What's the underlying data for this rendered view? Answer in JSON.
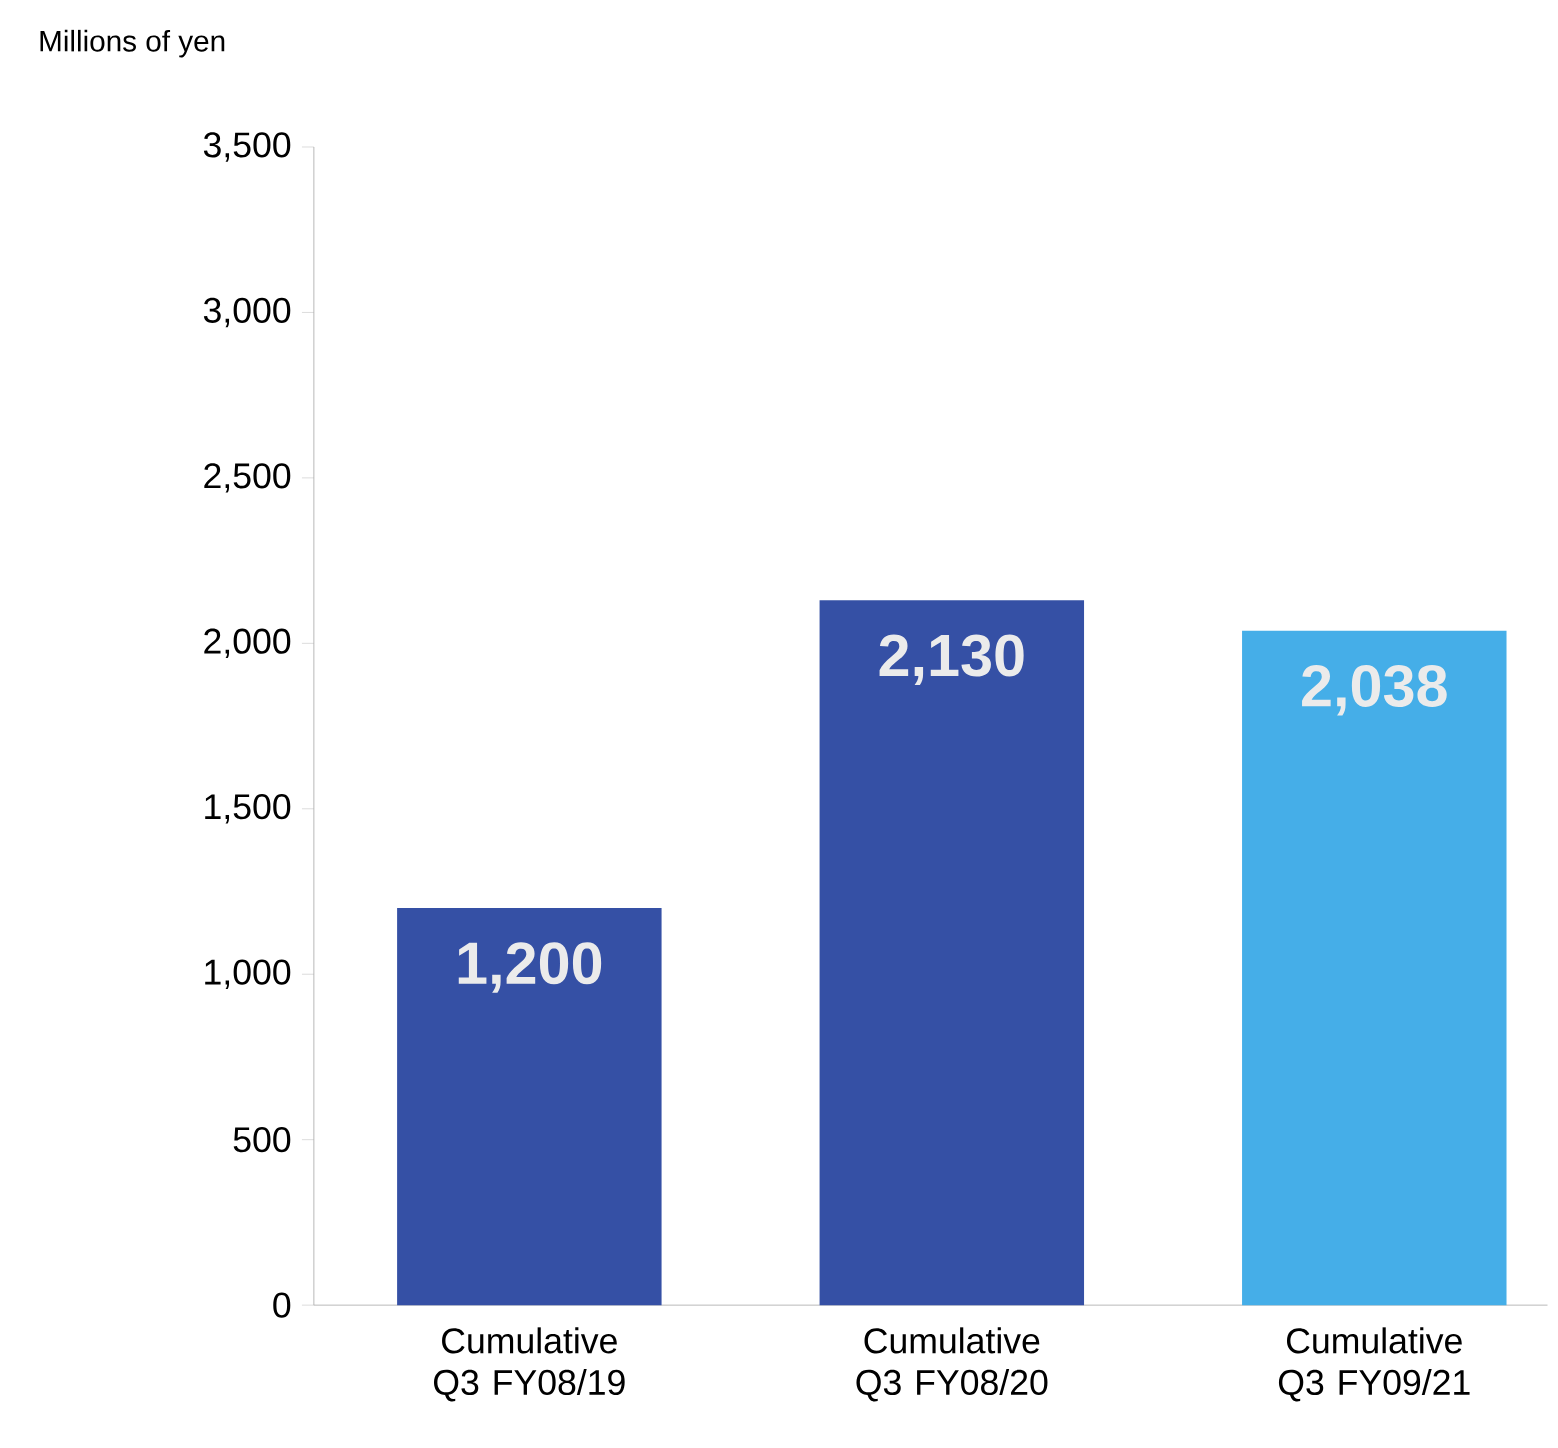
{
  "chart_data": {
    "type": "bar",
    "ylabel": "Millions of yen",
    "categories": [
      "Cumulative Q3 FY08/19",
      "Cumulative Q3 FY08/20",
      "Cumulative Q3 FY09/21"
    ],
    "values": [
      1200,
      2130,
      2038
    ],
    "colors": [
      "#3550a5",
      "#3550a5",
      "#45aee8"
    ],
    "value_labels": [
      "1,200",
      "2,130",
      "2,038"
    ],
    "ylim": [
      0,
      3500
    ],
    "yticks": [
      0,
      500,
      {
        "value": 1000,
        "label": "1,000"
      },
      {
        "value": 1500,
        "label": "1,500"
      },
      {
        "value": 2000,
        "label": "2,000"
      },
      {
        "value": 2500,
        "label": "2,500"
      },
      {
        "value": 3000,
        "label": "3,000"
      },
      {
        "value": 3500,
        "label": "3,500"
      }
    ],
    "grid": false
  }
}
